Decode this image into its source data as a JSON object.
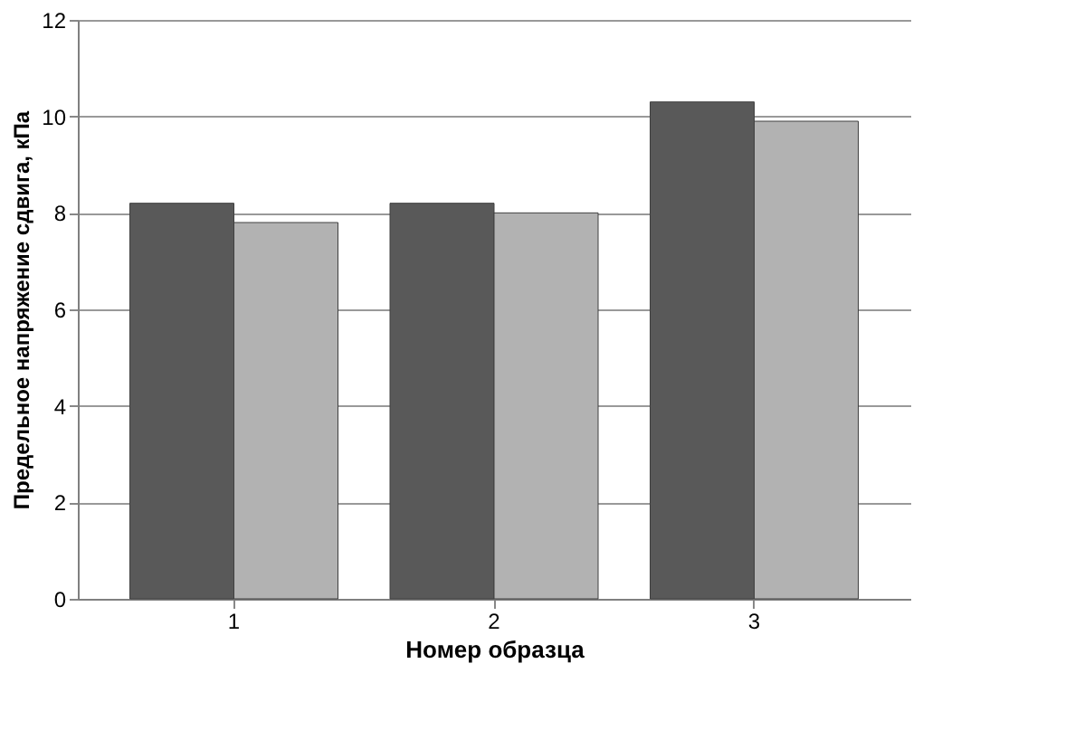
{
  "chart_data": {
    "type": "bar",
    "xlabel": "Номер образца",
    "ylabel": "Предельное напряжение сдвига, кПа",
    "categories": [
      "1",
      "2",
      "3"
    ],
    "series": [
      {
        "color": "#595959",
        "values": [
          8.2,
          8.2,
          10.3
        ]
      },
      {
        "color": "#b2b2b2",
        "values": [
          7.8,
          8.0,
          9.9
        ]
      }
    ],
    "ylim": [
      0,
      12
    ],
    "yticks": [
      0,
      2,
      4,
      6,
      8,
      10,
      12
    ],
    "grid": "y"
  }
}
